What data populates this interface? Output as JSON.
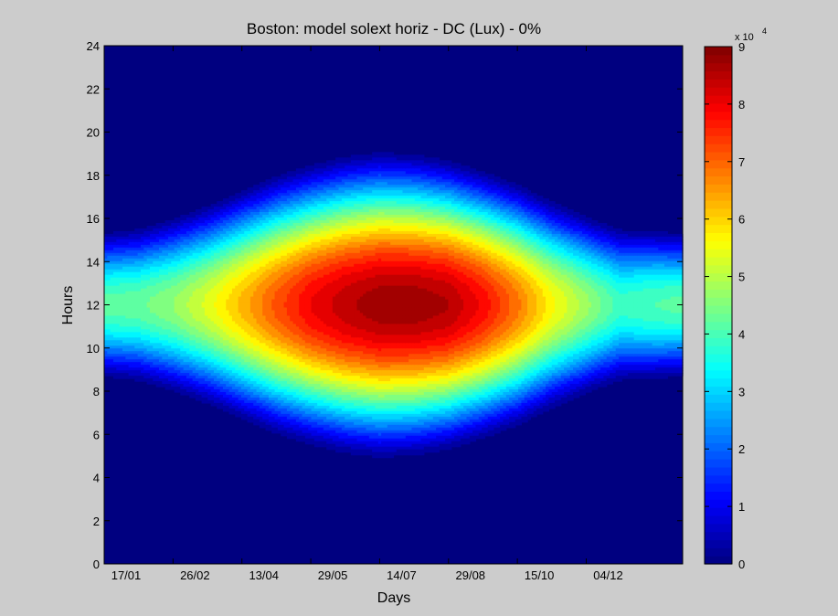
{
  "chart_data": {
    "type": "heatmap",
    "title": "Boston: model solext horiz - DC  (Lux) - 0%",
    "xlabel": "Days",
    "ylabel": "Hours",
    "x_tick_labels": [
      "17/01",
      "26/02",
      "13/04",
      "29/05",
      "14/07",
      "29/08",
      "15/10",
      "04/12"
    ],
    "y_tick_labels": [
      "0",
      "2",
      "4",
      "6",
      "8",
      "10",
      "12",
      "14",
      "16",
      "18",
      "20",
      "22",
      "24"
    ],
    "ylim": [
      0,
      24
    ],
    "xlim": [
      0,
      8.4
    ],
    "colorbar": {
      "ticks": [
        "0",
        "1",
        "2",
        "3",
        "4",
        "5",
        "6",
        "7",
        "8",
        "9"
      ],
      "multiplier": "x 10",
      "exponent": "4",
      "range": [
        0,
        90000
      ],
      "colormap": "jet"
    },
    "x": [
      0,
      0.5,
      1,
      1.5,
      2,
      2.5,
      3,
      3.5,
      4,
      4.5,
      5,
      5.5,
      6,
      6.5,
      7,
      7.5,
      8,
      8.4
    ],
    "daily_peak_at_noon": [
      43000,
      44000,
      48000,
      55000,
      64000,
      73000,
      81000,
      86000,
      89000,
      89000,
      87000,
      80000,
      70000,
      58000,
      49000,
      40000,
      42000,
      43000
    ],
    "daylight_half_width_hours": [
      3.6,
      3.8,
      4.3,
      4.9,
      5.6,
      6.3,
      6.8,
      7.2,
      7.4,
      7.3,
      7.0,
      6.5,
      5.9,
      5.1,
      4.4,
      3.8,
      3.7,
      3.6
    ]
  }
}
